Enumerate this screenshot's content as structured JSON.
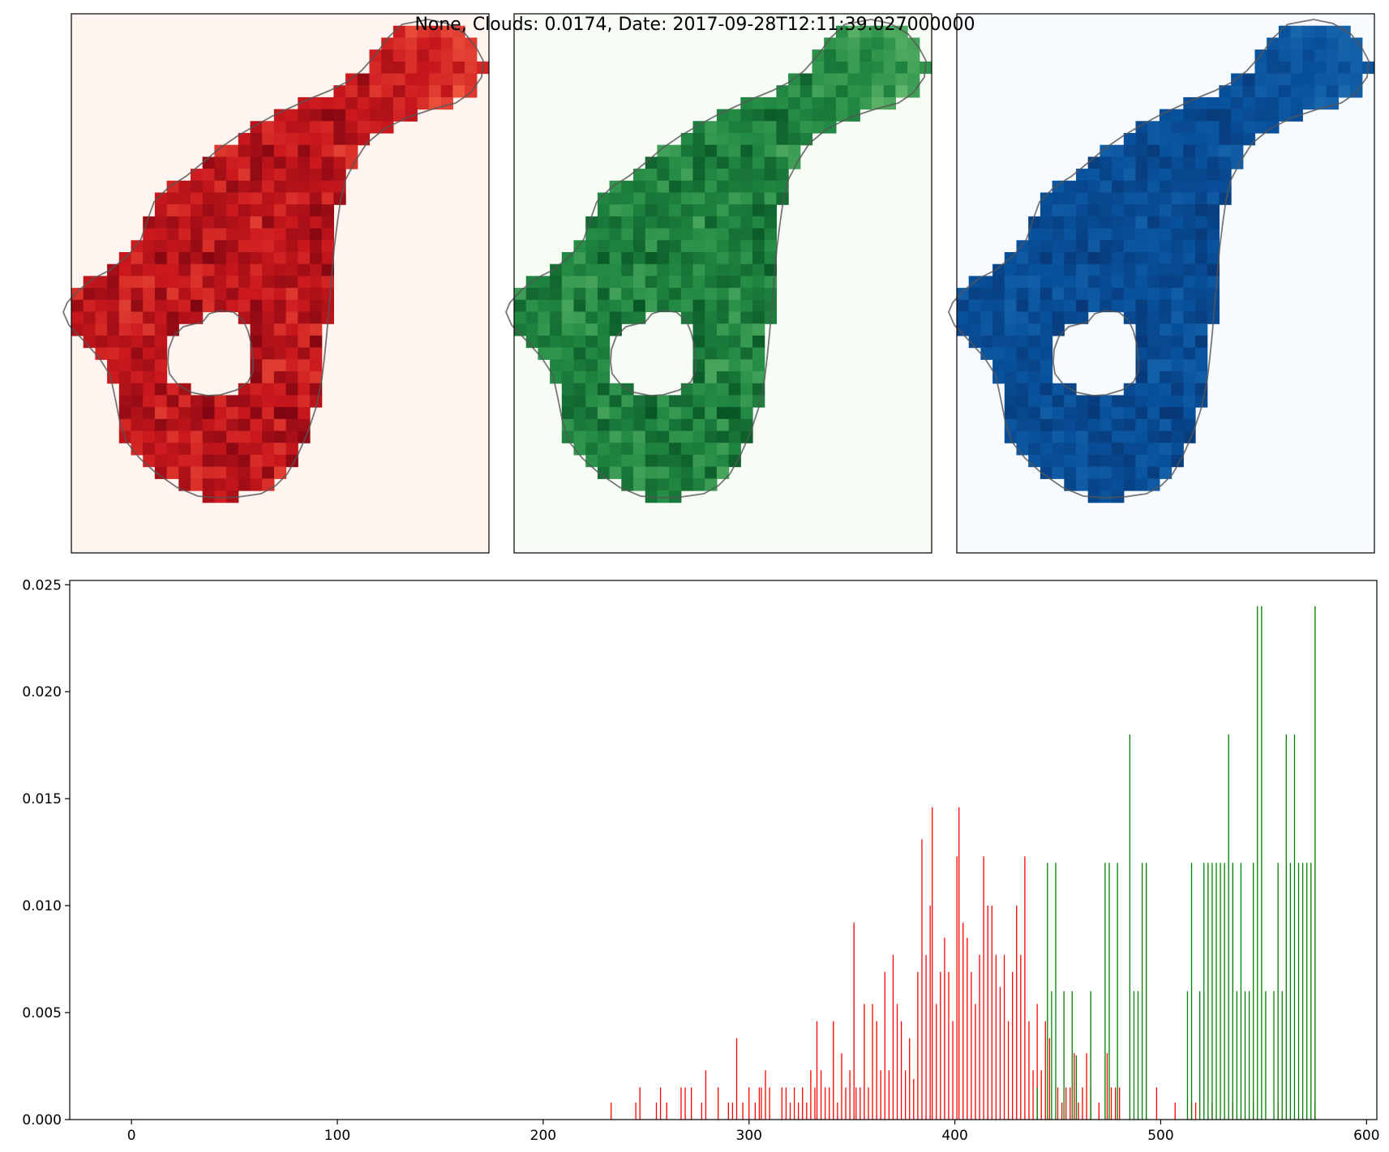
{
  "figure": {
    "title": "None, Clouds: 0.0174, Date: 2017-09-28T12:11:39.027000000"
  },
  "chart_data": [
    {
      "type": "heatmap",
      "panel": "red-band",
      "colormap": "Reds",
      "colors": {
        "background": "#fff5f0",
        "low": "#fb6a4a",
        "mid": "#cb181d",
        "high": "#67000d"
      },
      "axes_visible": false
    },
    {
      "type": "heatmap",
      "panel": "green-band",
      "colormap": "Greens",
      "colors": {
        "background": "#f7fcf5",
        "low": "#74c476",
        "mid": "#238b45",
        "high": "#00441b"
      },
      "axes_visible": false
    },
    {
      "type": "heatmap",
      "panel": "blue-band",
      "colormap": "Blues",
      "colors": {
        "background": "#f7fbff",
        "low": "#2171b5",
        "mid": "#08519c",
        "high": "#08306b"
      },
      "axes_visible": false
    },
    {
      "type": "bar",
      "xlim": [
        -30,
        605
      ],
      "ylim": [
        0,
        0.0252
      ],
      "xticks": [
        0,
        100,
        200,
        300,
        400,
        500,
        600
      ],
      "yticks": [
        "0.000",
        "0.005",
        "0.010",
        "0.015",
        "0.020",
        "0.025"
      ],
      "grid": false,
      "legend": "none",
      "series": [
        {
          "color": "#ff0000",
          "bars": [
            [
              233,
              0.0008
            ],
            [
              245,
              0.0008
            ],
            [
              247,
              0.0015
            ],
            [
              255,
              0.0008
            ],
            [
              257,
              0.0015
            ],
            [
              260,
              0.0008
            ],
            [
              267,
              0.0015
            ],
            [
              269,
              0.0015
            ],
            [
              272,
              0.0015
            ],
            [
              277,
              0.0008
            ],
            [
              279,
              0.0023
            ],
            [
              285,
              0.0015
            ],
            [
              290,
              0.0008
            ],
            [
              292,
              0.0008
            ],
            [
              294,
              0.0038
            ],
            [
              297,
              0.0008
            ],
            [
              300,
              0.0015
            ],
            [
              303,
              0.0008
            ],
            [
              305,
              0.0015
            ],
            [
              306,
              0.0015
            ],
            [
              308,
              0.0023
            ],
            [
              310,
              0.0015
            ],
            [
              316,
              0.0015
            ],
            [
              318,
              0.0015
            ],
            [
              320,
              0.0008
            ],
            [
              322,
              0.0015
            ],
            [
              324,
              0.0008
            ],
            [
              326,
              0.0015
            ],
            [
              328,
              0.0008
            ],
            [
              330,
              0.0023
            ],
            [
              332,
              0.0015
            ],
            [
              333,
              0.0046
            ],
            [
              335,
              0.0023
            ],
            [
              337,
              0.0015
            ],
            [
              339,
              0.0015
            ],
            [
              341,
              0.0046
            ],
            [
              343,
              0.0008
            ],
            [
              345,
              0.0031
            ],
            [
              347,
              0.0015
            ],
            [
              349,
              0.0023
            ],
            [
              351,
              0.0092
            ],
            [
              352,
              0.0015
            ],
            [
              354,
              0.0015
            ],
            [
              356,
              0.0054
            ],
            [
              358,
              0.0015
            ],
            [
              360,
              0.0054
            ],
            [
              362,
              0.0046
            ],
            [
              364,
              0.0023
            ],
            [
              366,
              0.0069
            ],
            [
              368,
              0.0023
            ],
            [
              370,
              0.0077
            ],
            [
              372,
              0.0054
            ],
            [
              374,
              0.0046
            ],
            [
              376,
              0.0023
            ],
            [
              378,
              0.0038
            ],
            [
              380,
              0.0019
            ],
            [
              382,
              0.0069
            ],
            [
              384,
              0.0131
            ],
            [
              386,
              0.0077
            ],
            [
              388,
              0.01
            ],
            [
              389,
              0.0146
            ],
            [
              391,
              0.0054
            ],
            [
              393,
              0.0069
            ],
            [
              395,
              0.0085
            ],
            [
              397,
              0.0069
            ],
            [
              399,
              0.0046
            ],
            [
              401,
              0.0123
            ],
            [
              402,
              0.0146
            ],
            [
              404,
              0.0092
            ],
            [
              406,
              0.0085
            ],
            [
              408,
              0.0069
            ],
            [
              410,
              0.0054
            ],
            [
              412,
              0.0077
            ],
            [
              414,
              0.0123
            ],
            [
              416,
              0.01
            ],
            [
              418,
              0.01
            ],
            [
              420,
              0.0077
            ],
            [
              422,
              0.0062
            ],
            [
              424,
              0.0077
            ],
            [
              426,
              0.0046
            ],
            [
              428,
              0.0069
            ],
            [
              430,
              0.01
            ],
            [
              432,
              0.0077
            ],
            [
              434,
              0.0123
            ],
            [
              436,
              0.0046
            ],
            [
              438,
              0.0023
            ],
            [
              440,
              0.0054
            ],
            [
              442,
              0.0023
            ],
            [
              444,
              0.0046
            ],
            [
              446,
              0.0038
            ],
            [
              450,
              0.0015
            ],
            [
              452,
              0.0008
            ],
            [
              454,
              0.0015
            ],
            [
              456,
              0.0015
            ],
            [
              458,
              0.0031
            ],
            [
              460,
              0.0008
            ],
            [
              462,
              0.0015
            ],
            [
              464,
              0.0031
            ],
            [
              466,
              0.0015
            ],
            [
              470,
              0.0008
            ],
            [
              474,
              0.0031
            ],
            [
              476,
              0.0015
            ],
            [
              478,
              0.0015
            ],
            [
              480,
              0.0015
            ],
            [
              498,
              0.0015
            ],
            [
              507,
              0.0008
            ],
            [
              515,
              0.0008
            ],
            [
              517,
              0.0008
            ],
            [
              525,
              0.0008
            ],
            [
              535,
              0.0008
            ],
            [
              545,
              0.0008
            ],
            [
              557,
              0.0008
            ],
            [
              575,
              0.0008
            ]
          ]
        },
        {
          "color": "#008000",
          "bars": [
            [
              440,
              0.0015
            ],
            [
              445,
              0.012
            ],
            [
              447,
              0.006
            ],
            [
              449,
              0.012
            ],
            [
              453,
              0.006
            ],
            [
              457,
              0.006
            ],
            [
              459,
              0.003
            ],
            [
              466,
              0.006
            ],
            [
              473,
              0.012
            ],
            [
              475,
              0.012
            ],
            [
              479,
              0.012
            ],
            [
              485,
              0.018
            ],
            [
              487,
              0.006
            ],
            [
              489,
              0.006
            ],
            [
              491,
              0.012
            ],
            [
              493,
              0.012
            ],
            [
              513,
              0.006
            ],
            [
              515,
              0.012
            ],
            [
              519,
              0.006
            ],
            [
              521,
              0.012
            ],
            [
              523,
              0.012
            ],
            [
              525,
              0.012
            ],
            [
              527,
              0.012
            ],
            [
              529,
              0.012
            ],
            [
              531,
              0.012
            ],
            [
              533,
              0.018
            ],
            [
              535,
              0.012
            ],
            [
              537,
              0.006
            ],
            [
              539,
              0.012
            ],
            [
              541,
              0.006
            ],
            [
              543,
              0.006
            ],
            [
              545,
              0.012
            ],
            [
              547,
              0.024
            ],
            [
              549,
              0.024
            ],
            [
              551,
              0.006
            ],
            [
              555,
              0.006
            ],
            [
              557,
              0.012
            ],
            [
              559,
              0.006
            ],
            [
              561,
              0.018
            ],
            [
              563,
              0.012
            ],
            [
              565,
              0.018
            ],
            [
              567,
              0.012
            ],
            [
              569,
              0.012
            ],
            [
              571,
              0.012
            ],
            [
              573,
              0.012
            ],
            [
              575,
              0.024
            ]
          ]
        }
      ]
    }
  ]
}
